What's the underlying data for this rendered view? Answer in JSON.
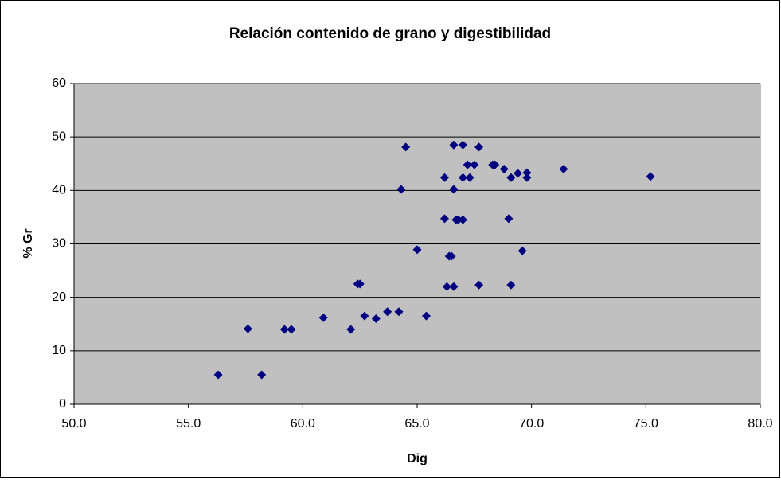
{
  "chart_data": {
    "type": "scatter",
    "title": "Relación contenido de grano y digestibilidad",
    "x_label": "Dig",
    "y_label": "% Gr",
    "xlim": [
      50,
      80
    ],
    "xticks": [
      {
        "value": 50,
        "label": "50.0"
      },
      {
        "value": 55,
        "label": "55.0"
      },
      {
        "value": 60,
        "label": "60.0"
      },
      {
        "value": 65,
        "label": "65.0"
      },
      {
        "value": 70,
        "label": "70.0"
      },
      {
        "value": 75,
        "label": "75.0"
      },
      {
        "value": 80,
        "label": "80.0"
      }
    ],
    "ylim": [
      0,
      60
    ],
    "yticks": [
      0,
      10,
      20,
      30,
      40,
      50,
      60
    ],
    "grid": true,
    "color": "#000080",
    "x": [
      56.3,
      57.6,
      58.2,
      59.2,
      59.5,
      60.9,
      62.1,
      62.4,
      62.5,
      62.7,
      63.2,
      63.7,
      64.2,
      64.3,
      64.5,
      65.0,
      65.4,
      66.2,
      66.2,
      66.3,
      66.4,
      66.5,
      66.6,
      66.6,
      66.6,
      66.7,
      66.8,
      67.0,
      67.0,
      67.0,
      67.2,
      67.3,
      67.5,
      67.7,
      67.7,
      68.3,
      68.4,
      68.8,
      69.0,
      69.1,
      69.1,
      69.4,
      69.6,
      69.8,
      69.8,
      71.4,
      75.2
    ],
    "values": [
      5.5,
      14.1,
      5.5,
      14,
      14,
      16.2,
      14,
      22.5,
      22.5,
      16.5,
      16,
      17.3,
      17.3,
      40.2,
      48.1,
      28.9,
      16.5,
      42.4,
      34.7,
      22,
      27.7,
      27.7,
      40.2,
      22,
      48.5,
      34.5,
      34.5,
      48.5,
      34.5,
      42.4,
      44.8,
      42.4,
      44.8,
      48.1,
      22.3,
      44.8,
      44.8,
      44,
      34.7,
      42.4,
      22.3,
      43.2,
      28.7,
      42.4,
      43.3,
      44,
      42.6
    ]
  }
}
